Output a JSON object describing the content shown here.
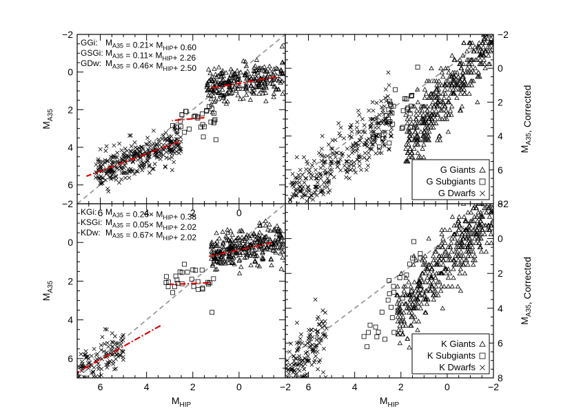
{
  "chart_data": [
    {
      "type": "scatter",
      "panel": "top-left",
      "ylabel": "M_A35",
      "xlim": [
        7,
        -2
      ],
      "ylim": [
        7,
        -2
      ],
      "xticks": [
        "6",
        "4",
        "2",
        "0"
      ],
      "yticks": [
        "−2",
        "0",
        "2",
        "4",
        "6"
      ],
      "annotations": [
        {
          "prefix": "GGi:",
          "text": "M_A35 =  0.21× M_HIP+ 0.60"
        },
        {
          "prefix": "GSGi:",
          "text": "M_A35 =  0.11× M_HIP+ 2.26"
        },
        {
          "prefix": "GDw:",
          "text": "M_A35 =  0.46× M_HIP+ 2.50"
        }
      ],
      "series": [
        {
          "name": "G Giants",
          "marker": "triangle",
          "x_range": [
            -1.9,
            1.4
          ],
          "y_center_slope": 0.21,
          "y_center_intercept": 0.6,
          "n": 260
        },
        {
          "name": "G Subgiants",
          "marker": "square",
          "x_range": [
            1.0,
            3.0
          ],
          "y_center_slope": 0.11,
          "y_center_intercept": 2.26,
          "n": 30
        },
        {
          "name": "G Dwarfs",
          "marker": "x",
          "x_range": [
            2.5,
            6.2
          ],
          "y_center_slope": 0.46,
          "y_center_intercept": 2.5,
          "n": 320
        }
      ],
      "fits": [
        {
          "slope": 0.21,
          "intercept": 0.6,
          "x_range": [
            -1.6,
            1.3
          ]
        },
        {
          "slope": 0.11,
          "intercept": 2.26,
          "x_range": [
            1.5,
            2.9
          ]
        },
        {
          "slope": 0.46,
          "intercept": 2.5,
          "x_range": [
            2.6,
            6.6
          ]
        }
      ]
    },
    {
      "type": "scatter",
      "panel": "top-right",
      "ylabel": "M_A35, Corrected",
      "xlim": [
        7,
        -2
      ],
      "ylim": [
        8,
        -2
      ],
      "yticks": [
        "−2",
        "0",
        "2",
        "4",
        "6",
        "8"
      ],
      "legend": {
        "position": "lower-right",
        "entries": [
          "G Giants",
          "G Subgiants",
          "G Dwarfs"
        ]
      },
      "series": [
        {
          "name": "G Giants",
          "marker": "triangle",
          "x_range": [
            -2.0,
            1.8
          ],
          "y_range": [
            -2.0,
            4.6
          ],
          "n": 420
        },
        {
          "name": "G Subgiants",
          "marker": "square",
          "x_range": [
            1.2,
            3.4
          ],
          "y_range": [
            1.5,
            3.5
          ],
          "n": 30
        },
        {
          "name": "G Dwarfs",
          "marker": "x",
          "x_range": [
            2.4,
            6.8
          ],
          "y_range": [
            3.0,
            7.8
          ],
          "n": 320
        }
      ]
    },
    {
      "type": "scatter",
      "panel": "bottom-left",
      "ylabel": "M_A35",
      "xlabel": "M_HIP",
      "xlim": [
        7,
        -2
      ],
      "ylim": [
        7,
        -2
      ],
      "xticks": [
        "6",
        "4",
        "2",
        "0",
        "−2"
      ],
      "yticks": [
        "−2",
        "0",
        "2",
        "4",
        "6"
      ],
      "annotations": [
        {
          "prefix": "KGi:",
          "text": "M_A35 =  0.26× M_HIP+ 0.38"
        },
        {
          "prefix": "KSGi:",
          "text": "M_A35 =  0.05× M_HIP+ 2.02"
        },
        {
          "prefix": "KDw:",
          "text": "M_A35 =  0.67× M_HIP+ 2.02"
        }
      ],
      "series": [
        {
          "name": "K Giants",
          "marker": "triangle",
          "x_range": [
            -1.9,
            1.2
          ],
          "y_center_slope": 0.26,
          "y_center_intercept": 0.38,
          "n": 300
        },
        {
          "name": "K Subgiants",
          "marker": "square",
          "x_range": [
            1.0,
            3.2
          ],
          "y_center_slope": 0.05,
          "y_center_intercept": 2.02,
          "n": 28
        },
        {
          "name": "K Dwarfs",
          "marker": "x",
          "x_range": [
            5.0,
            7.0
          ],
          "y_center_slope": 0.67,
          "y_center_intercept": 2.02,
          "n": 120
        }
      ],
      "fits": [
        {
          "slope": 0.26,
          "intercept": 0.38,
          "x_range": [
            -1.4,
            1.3
          ]
        },
        {
          "slope": 0.05,
          "intercept": 2.02,
          "x_range": [
            1.3,
            3.0
          ]
        },
        {
          "slope": 0.67,
          "intercept": 2.02,
          "x_range": [
            3.4,
            7.0
          ]
        }
      ]
    },
    {
      "type": "scatter",
      "panel": "bottom-right",
      "ylabel": "M_A35, Corrected",
      "xlabel": "M_HIP",
      "xlim": [
        7,
        -2
      ],
      "ylim": [
        8,
        -2
      ],
      "xticks": [
        "6",
        "4",
        "2",
        "0",
        "−2"
      ],
      "yticks": [
        "−2",
        "0",
        "2",
        "4",
        "6",
        "8"
      ],
      "legend": {
        "position": "lower-right",
        "entries": [
          "K Giants",
          "K Subgiants",
          "K Dwarfs"
        ]
      },
      "series": [
        {
          "name": "K Giants",
          "marker": "triangle",
          "x_range": [
            -2.0,
            2.2
          ],
          "y_range": [
            -1.6,
            4.4
          ],
          "n": 460
        },
        {
          "name": "K Subgiants",
          "marker": "square",
          "x_range": [
            1.0,
            3.6
          ],
          "y_range": [
            1.0,
            6.0
          ],
          "n": 28
        },
        {
          "name": "K Dwarfs",
          "marker": "x",
          "x_range": [
            5.2,
            7.0
          ],
          "y_range": [
            5.2,
            8.0
          ],
          "n": 150
        }
      ]
    }
  ]
}
